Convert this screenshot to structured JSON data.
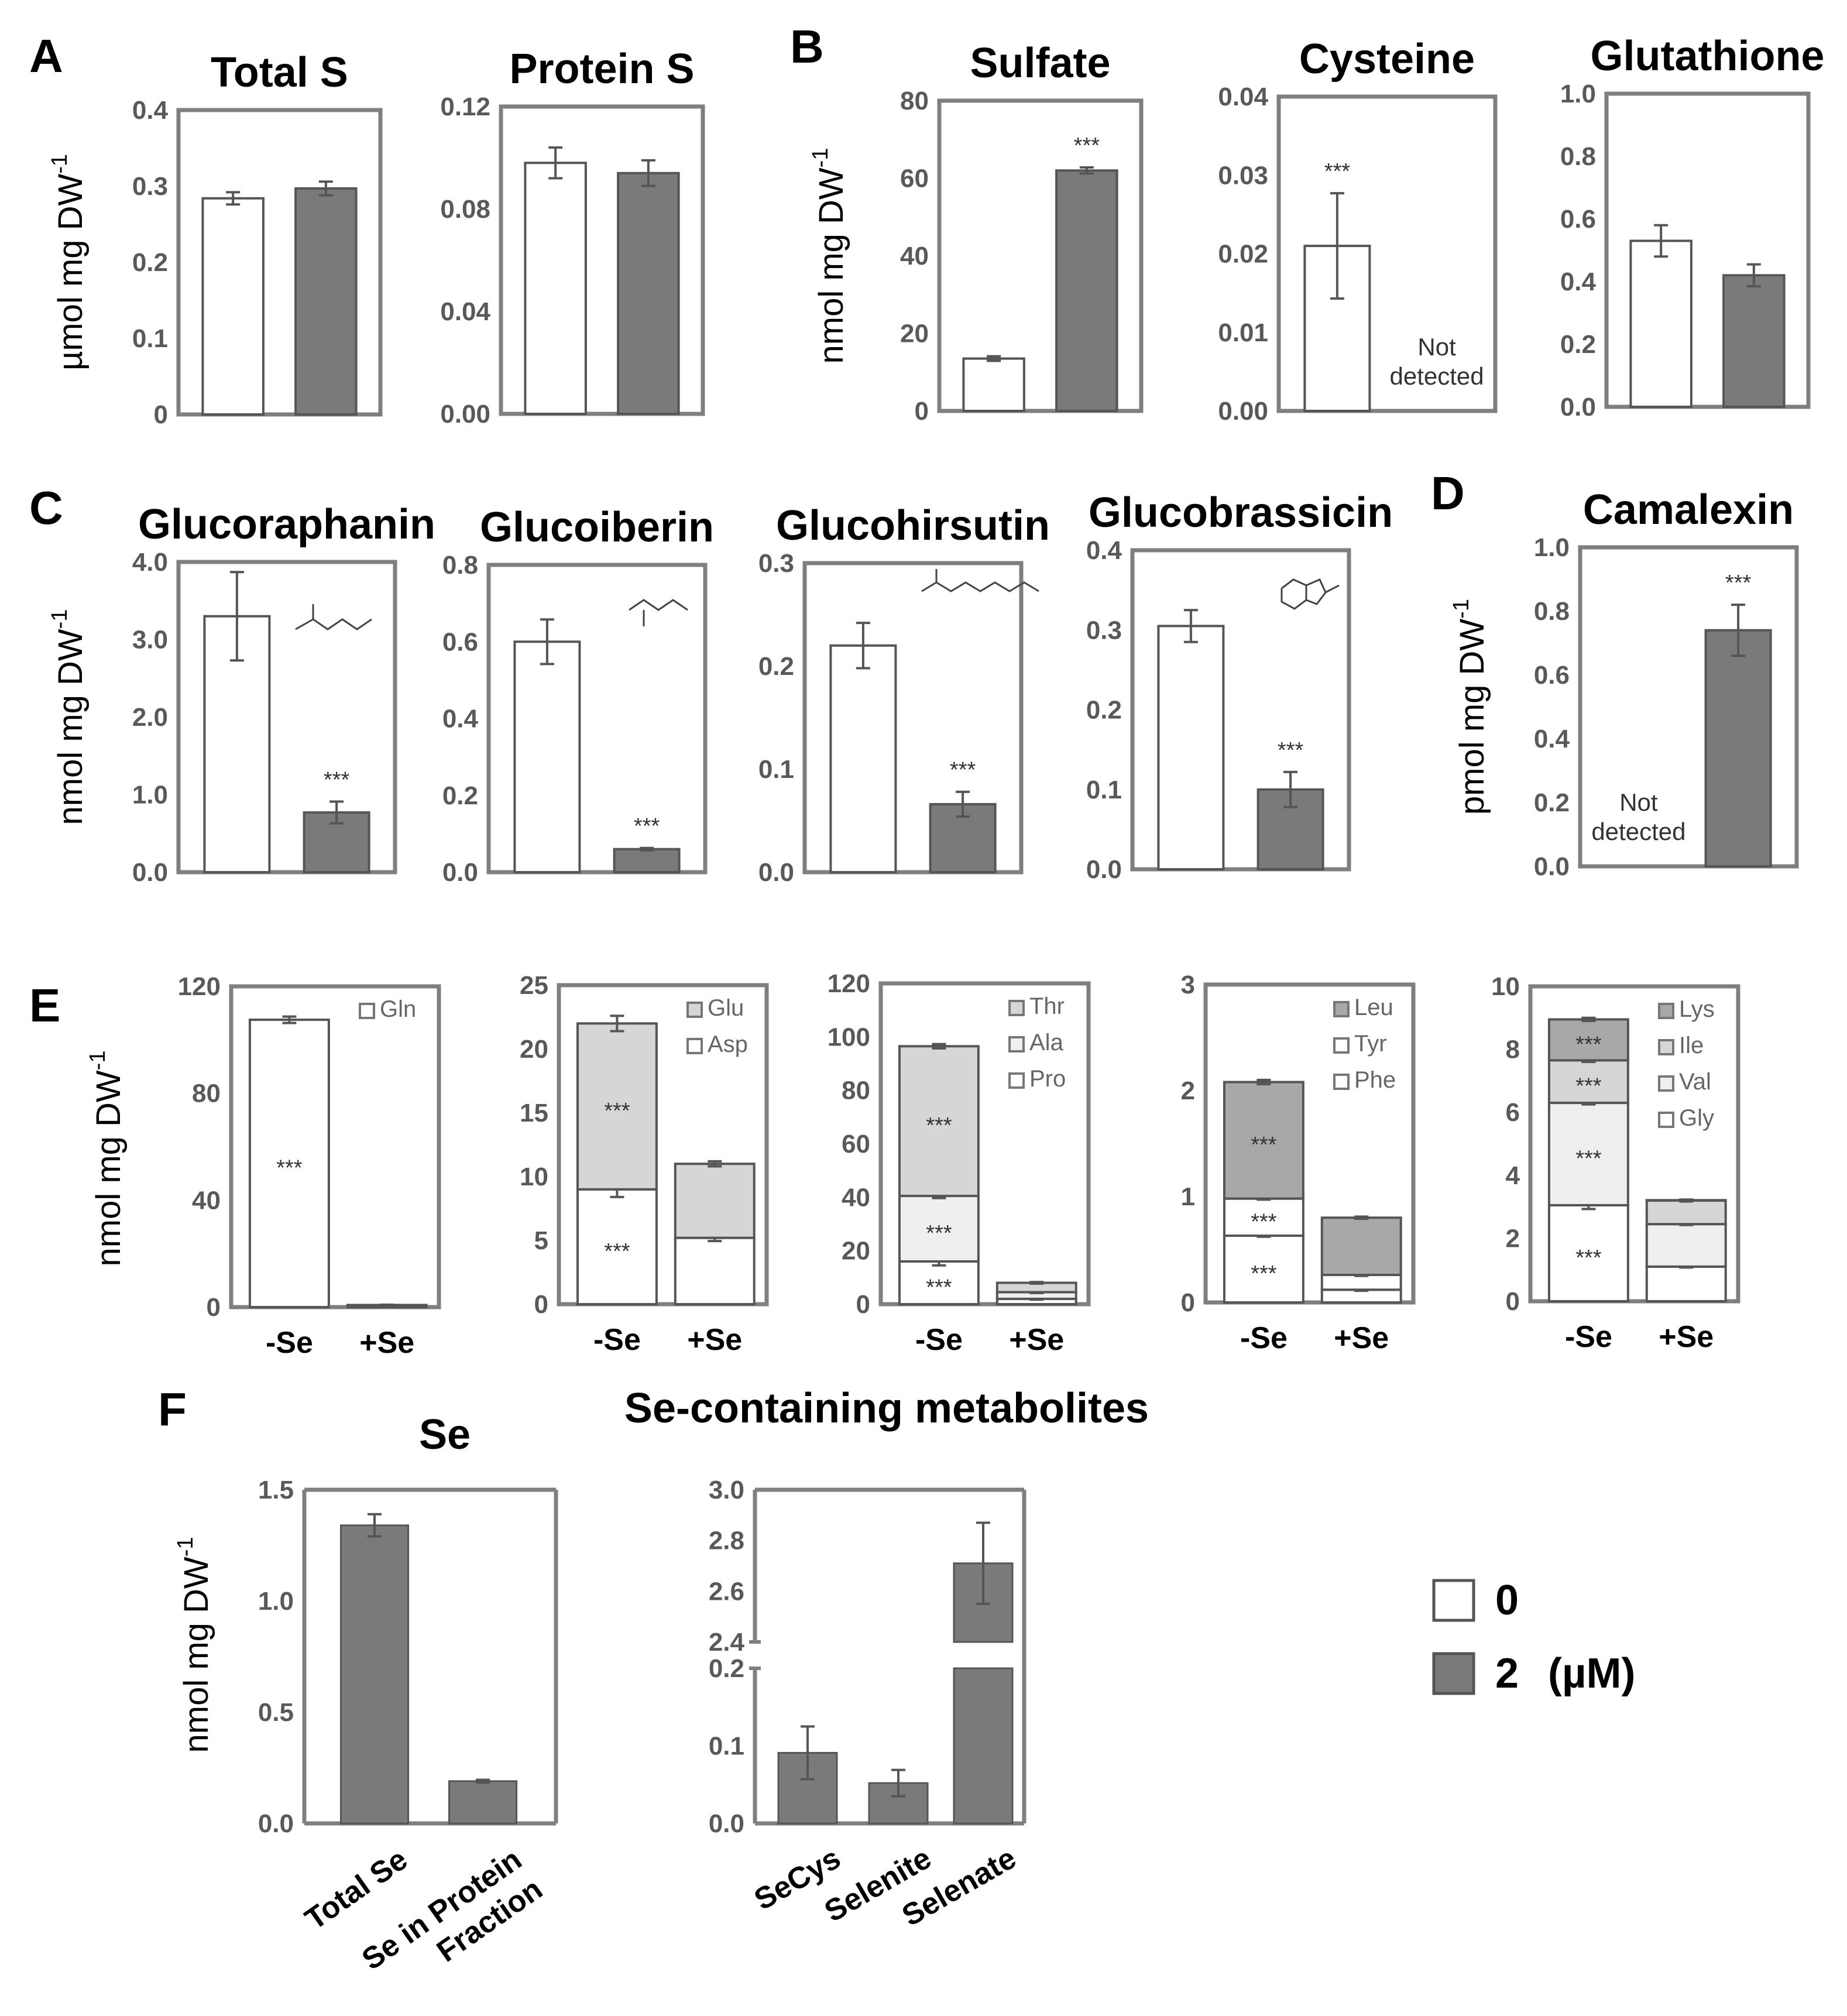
{
  "figure": {
    "colors": {
      "control": "#ffffff",
      "treated": "#7a7a7a",
      "frame": "#7f7f7f",
      "stack_light": "#d6d6d6",
      "stack_lighter": "#efefef",
      "stack_mid": "#a8a8a8"
    },
    "legend": {
      "items": [
        {
          "label": "0",
          "color": "#ffffff"
        },
        {
          "label": "2",
          "color": "#7a7a7a"
        }
      ],
      "unit": "(µM)"
    },
    "categories_se": [
      "-Se",
      "+Se"
    ]
  },
  "chart_data": [
    {
      "id": "A1",
      "panel_letter": "A",
      "type": "bar",
      "title": "Total S",
      "ylabel": "µmol mg DW",
      "ylabel_sup": "-1",
      "ylim": [
        0,
        0.4
      ],
      "yticks": [
        "0",
        "0.1",
        "0.2",
        "0.3",
        "0.4"
      ],
      "values": [
        0.284,
        0.297
      ],
      "errors": [
        0.008,
        0.009
      ]
    },
    {
      "id": "A2",
      "type": "bar",
      "title": "Protein S",
      "ylim": [
        0,
        0.12
      ],
      "yticks": [
        "0.00",
        "0.04",
        "0.08",
        "0.12"
      ],
      "values": [
        0.098,
        0.094
      ],
      "errors": [
        0.006,
        0.005
      ]
    },
    {
      "id": "B1",
      "panel_letter": "B",
      "type": "bar",
      "title": "Sulfate",
      "ylabel": "nmol mg DW",
      "ylabel_sup": "-1",
      "ylim": [
        0,
        80
      ],
      "yticks": [
        "0",
        "20",
        "40",
        "60",
        "80"
      ],
      "values": [
        13.5,
        62
      ],
      "errors": [
        0.6,
        0.8
      ],
      "sig": [
        "",
        "***"
      ]
    },
    {
      "id": "B2",
      "type": "bar",
      "title": "Cysteine",
      "ylim": [
        0,
        0.04
      ],
      "yticks": [
        "0.00",
        "0.01",
        "0.02",
        "0.03",
        "0.04"
      ],
      "values": [
        0.021,
        null
      ],
      "errors": [
        0.0067,
        null
      ],
      "sig": [
        "***",
        ""
      ],
      "note_lines": [
        "Not",
        "detected"
      ]
    },
    {
      "id": "B3",
      "type": "bar",
      "title": "Glutathione",
      "ylim": [
        0,
        1.0
      ],
      "yticks": [
        "0.0",
        "0.2",
        "0.4",
        "0.6",
        "0.8",
        "1.0"
      ],
      "values": [
        0.53,
        0.42
      ],
      "errors": [
        0.05,
        0.035
      ]
    },
    {
      "id": "C1",
      "panel_letter": "C",
      "type": "bar",
      "title": "Glucoraphanin",
      "ylabel": "nmol mg DW",
      "ylabel_sup": "-1",
      "ylim": [
        0,
        4.0
      ],
      "yticks": [
        "0.0",
        "1.0",
        "2.0",
        "3.0",
        "4.0"
      ],
      "values": [
        3.3,
        0.77
      ],
      "errors": [
        0.57,
        0.14
      ],
      "sig": [
        "",
        "***"
      ]
    },
    {
      "id": "C2",
      "type": "bar",
      "title": "Glucoiberin",
      "ylim": [
        0,
        0.8
      ],
      "yticks": [
        "0.0",
        "0.2",
        "0.4",
        "0.6",
        "0.8"
      ],
      "values": [
        0.6,
        0.06
      ],
      "errors": [
        0.058,
        0.003
      ],
      "sig": [
        "",
        "***"
      ]
    },
    {
      "id": "C3",
      "type": "bar",
      "title": "Glucohirsutin",
      "ylim": [
        0,
        0.3
      ],
      "yticks": [
        "0.0",
        "0.1",
        "0.2",
        "0.3"
      ],
      "values": [
        0.22,
        0.066
      ],
      "errors": [
        0.022,
        0.012
      ],
      "sig": [
        "",
        "***"
      ]
    },
    {
      "id": "C4",
      "type": "bar",
      "title": "Glucobrassicin",
      "ylim": [
        0,
        0.4
      ],
      "yticks": [
        "0.0",
        "0.1",
        "0.2",
        "0.3",
        "0.4"
      ],
      "values": [
        0.305,
        0.1
      ],
      "errors": [
        0.02,
        0.022
      ],
      "sig": [
        "",
        "***"
      ]
    },
    {
      "id": "D1",
      "panel_letter": "D",
      "type": "bar",
      "title": "Camalexin",
      "ylabel": "pmol mg DW",
      "ylabel_sup": "-1",
      "ylim": [
        0,
        1.0
      ],
      "yticks": [
        "0.0",
        "0.2",
        "0.4",
        "0.6",
        "0.8",
        "1.0"
      ],
      "values": [
        null,
        0.74
      ],
      "errors": [
        null,
        0.08
      ],
      "sig": [
        "",
        "***"
      ],
      "note_lines": [
        "Not",
        "detected"
      ]
    },
    {
      "id": "E1",
      "panel_letter": "E",
      "type": "stacked_bar",
      "ylabel": "nmol mg DW",
      "ylabel_sup": "-1",
      "ylim": [
        0,
        120
      ],
      "yticks": [
        "0",
        "40",
        "80",
        "120"
      ],
      "series": [
        {
          "name": "Gln",
          "values": [
            107.5,
            0.8
          ],
          "errors": [
            1.2,
            0.1
          ],
          "sig": [
            "***",
            ""
          ]
        }
      ]
    },
    {
      "id": "E2",
      "type": "stacked_bar",
      "ylim": [
        0,
        25
      ],
      "yticks": [
        "0",
        "5",
        "10",
        "15",
        "20",
        "25"
      ],
      "series": [
        {
          "name": "Asp",
          "values": [
            9.0,
            5.2
          ],
          "errors": [
            0.6,
            0.25
          ],
          "sig": [
            "***",
            ""
          ]
        },
        {
          "name": "Glu",
          "values": [
            13.0,
            5.8
          ],
          "errors": [
            0.6,
            0.2
          ],
          "sig": [
            "***",
            ""
          ]
        }
      ]
    },
    {
      "id": "E3",
      "type": "stacked_bar",
      "ylim": [
        0,
        120
      ],
      "yticks": [
        "0",
        "20",
        "40",
        "60",
        "80",
        "100",
        "120"
      ],
      "series": [
        {
          "name": "Pro",
          "values": [
            16,
            2
          ],
          "errors": [
            1.5,
            0.3
          ],
          "sig": [
            "***",
            ""
          ]
        },
        {
          "name": "Ala",
          "values": [
            24.5,
            2.5
          ],
          "errors": [
            0.8,
            0.3
          ],
          "sig": [
            "***",
            ""
          ]
        },
        {
          "name": "Thr",
          "values": [
            56,
            3.5
          ],
          "errors": [
            0.8,
            0.3
          ],
          "sig": [
            "***",
            ""
          ]
        }
      ]
    },
    {
      "id": "E4",
      "type": "stacked_bar",
      "ylim": [
        0,
        3
      ],
      "yticks": [
        "0",
        "1",
        "2",
        "3"
      ],
      "series": [
        {
          "name": "Phe",
          "values": [
            0.63,
            0.12
          ],
          "errors": [
            0.01,
            0.01
          ],
          "sig": [
            "***",
            ""
          ]
        },
        {
          "name": "Tyr",
          "values": [
            0.35,
            0.14
          ],
          "errors": [
            0.01,
            0.01
          ],
          "sig": [
            "***",
            ""
          ]
        },
        {
          "name": "Leu",
          "values": [
            1.1,
            0.54
          ],
          "errors": [
            0.02,
            0.01
          ],
          "sig": [
            "***",
            ""
          ]
        }
      ]
    },
    {
      "id": "E5",
      "type": "stacked_bar",
      "ylim": [
        0,
        10
      ],
      "yticks": [
        "0",
        "2",
        "4",
        "6",
        "8",
        "10"
      ],
      "series": [
        {
          "name": "Gly",
          "values": [
            3.05,
            1.1
          ],
          "errors": [
            0.12,
            0.03
          ],
          "sig": [
            "***",
            ""
          ]
        },
        {
          "name": "Val",
          "values": [
            3.25,
            1.35
          ],
          "errors": [
            0.05,
            0.03
          ],
          "sig": [
            "***",
            ""
          ]
        },
        {
          "name": "Ile",
          "values": [
            1.35,
            0.75
          ],
          "errors": [
            0.05,
            0.03
          ],
          "sig": [
            "***",
            ""
          ]
        },
        {
          "name": "Lys",
          "values": [
            1.3,
            0.01
          ],
          "errors": [
            0.05,
            0.01
          ],
          "sig": [
            "***",
            ""
          ]
        }
      ]
    },
    {
      "id": "F1",
      "panel_letter": "F",
      "type": "bar",
      "title": "Se",
      "ylabel": "nmol mg DW",
      "ylabel_sup": "-1",
      "ylim": [
        0,
        1.5
      ],
      "yticks": [
        "0.0",
        "0.5",
        "1.0",
        "1.5"
      ],
      "categories": [
        "Total Se",
        "Se in Protein Fraction"
      ],
      "values": [
        1.34,
        0.19
      ],
      "errors": [
        0.05,
        0.006
      ]
    },
    {
      "id": "F2",
      "type": "bar",
      "title": "Se-containing metabolites",
      "axis_break": true,
      "lower_range": [
        0,
        0.2
      ],
      "upper_range": [
        2.4,
        3.0
      ],
      "yticks_lower": [
        "0.0",
        "0.1",
        "0.2"
      ],
      "yticks_upper": [
        "2.4",
        "2.6",
        "2.8",
        "3.0"
      ],
      "categories": [
        "SeCys",
        "Selenite",
        "Selenate"
      ],
      "values": [
        0.091,
        0.052,
        2.71
      ],
      "errors": [
        0.034,
        0.017,
        0.16
      ]
    }
  ]
}
